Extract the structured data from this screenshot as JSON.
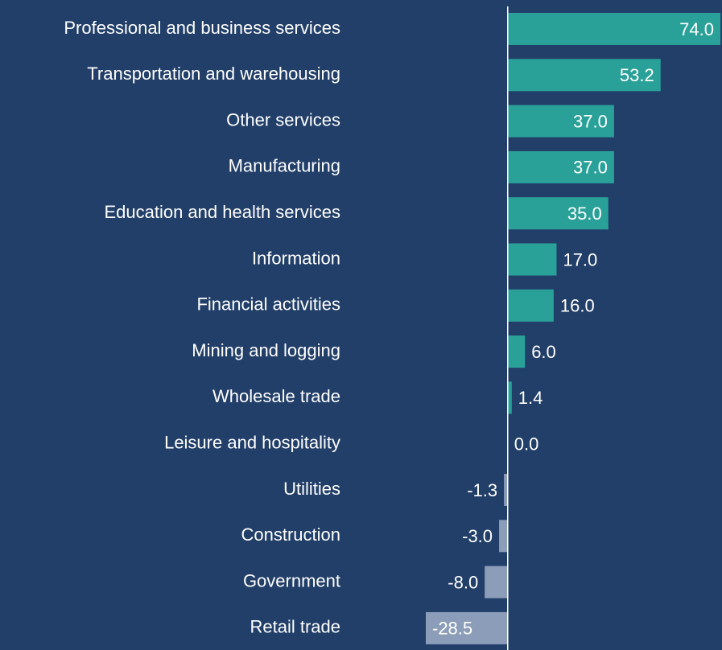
{
  "chart_data": {
    "type": "bar",
    "orientation": "horizontal",
    "categories": [
      "Professional and business services",
      "Transportation and warehousing",
      "Other services",
      "Manufacturing",
      "Education and health services",
      "Information",
      "Financial activities",
      "Mining and logging",
      "Wholesale trade",
      "Leisure and hospitality",
      "Utilities",
      "Construction",
      "Government",
      "Retail trade"
    ],
    "values": [
      74.0,
      53.2,
      37.0,
      37.0,
      35.0,
      17.0,
      16.0,
      6.0,
      1.4,
      0.0,
      -1.3,
      -3.0,
      -8.0,
      -28.5
    ],
    "value_labels": [
      "74.0",
      "53.2",
      "37.0",
      "37.0",
      "35.0",
      "17.0",
      "16.0",
      "6.0",
      "1.4",
      "0.0",
      "-1.3",
      "-3.0",
      "-8.0",
      "-28.5"
    ],
    "positive_color": "#2aa198",
    "negative_color": "#8c9db9"
  }
}
